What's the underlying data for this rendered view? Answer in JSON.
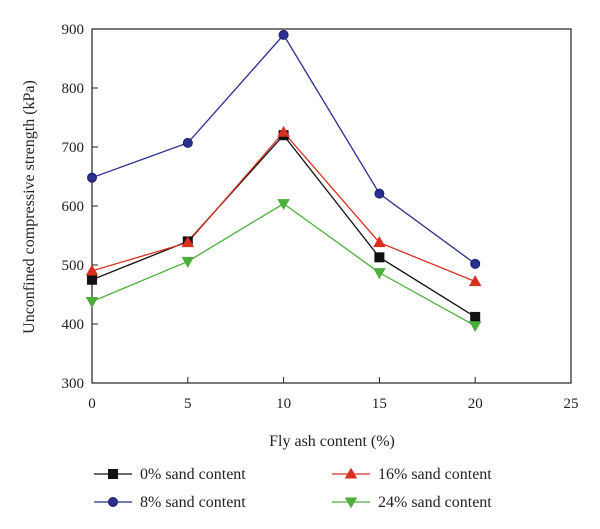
{
  "chart_data": {
    "type": "line",
    "xlabel": "Fly ash content (%)",
    "ylabel": "Unconfined compressive strength (kPa)",
    "xlim": [
      0,
      25
    ],
    "ylim": [
      300,
      900
    ],
    "xticks": [
      0,
      5,
      10,
      15,
      20,
      25
    ],
    "yticks": [
      300,
      400,
      500,
      600,
      700,
      800,
      900
    ],
    "x": [
      0,
      5,
      10,
      15,
      20
    ],
    "grid": false,
    "legend_position": "bottom",
    "series": [
      {
        "name": "0% sand content",
        "values": [
          475,
          540,
          720,
          513,
          412
        ],
        "color": "#111111",
        "marker": "square"
      },
      {
        "name": "8% sand content",
        "values": [
          648,
          707,
          890,
          621,
          502
        ],
        "color": "#2b2f8f",
        "marker": "circle"
      },
      {
        "name": "16% sand content",
        "values": [
          490,
          538,
          725,
          538,
          472
        ],
        "color": "#d7301f",
        "marker": "triangle-up"
      },
      {
        "name": "24% sand content",
        "values": [
          438,
          506,
          604,
          487,
          397
        ],
        "color": "#4caf3c",
        "marker": "triangle-down"
      }
    ]
  }
}
